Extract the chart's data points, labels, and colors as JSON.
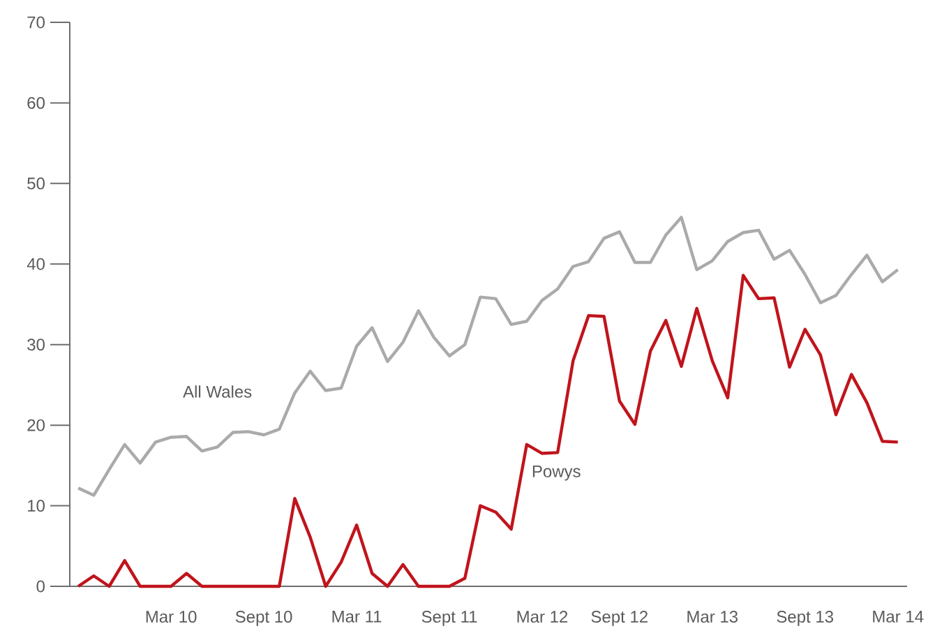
{
  "chart_data": {
    "type": "line",
    "categories": [
      null,
      null,
      null,
      null,
      null,
      null,
      "Mar 10",
      null,
      null,
      null,
      null,
      null,
      "Sept 10",
      null,
      null,
      null,
      null,
      null,
      "Mar 11",
      null,
      null,
      null,
      null,
      null,
      "Sept 11",
      null,
      null,
      null,
      null,
      null,
      "Mar 12",
      null,
      null,
      null,
      null,
      "Sept 12",
      null,
      null,
      null,
      null,
      null,
      "Mar 13",
      null,
      null,
      null,
      null,
      null,
      "Sept 13",
      null,
      null,
      null,
      null,
      null,
      "Mar 14"
    ],
    "series": [
      {
        "name": "All Wales",
        "color": "#aaaaaa",
        "values": [
          12.2,
          11.3,
          14.5,
          17.6,
          15.3,
          17.9,
          18.5,
          18.6,
          16.8,
          17.3,
          19.1,
          19.2,
          18.8,
          19.5,
          24.0,
          26.7,
          24.3,
          24.6,
          29.8,
          32.1,
          27.9,
          30.3,
          34.2,
          30.9,
          28.6,
          30.0,
          35.9,
          35.7,
          32.5,
          32.9,
          35.5,
          36.9,
          39.7,
          40.3,
          43.2,
          44.0,
          40.2,
          40.2,
          43.6,
          45.8,
          39.3,
          40.4,
          42.8,
          43.9,
          44.2,
          40.6,
          41.7,
          38.7,
          35.2,
          36.1,
          38.7,
          41.1,
          37.8,
          39.3
        ]
      },
      {
        "name": "Powys",
        "color": "#c0141c",
        "values": [
          0,
          1.3,
          0,
          3.2,
          0,
          0,
          0,
          1.6,
          0,
          0,
          0,
          0,
          0,
          0,
          10.9,
          6.1,
          0,
          3.0,
          7.6,
          1.6,
          0,
          2.7,
          0,
          0,
          0,
          1.0,
          10.0,
          9.2,
          7.1,
          17.6,
          16.5,
          16.6,
          28.0,
          33.6,
          33.5,
          23.0,
          20.1,
          29.2,
          33.0,
          27.3,
          34.5,
          28.0,
          23.4,
          38.6,
          35.7,
          35.8,
          27.2,
          31.9,
          28.7,
          21.3,
          26.3,
          22.8,
          18.0,
          17.9
        ]
      }
    ],
    "ylim": [
      0,
      70
    ],
    "yticks": [
      0,
      10,
      20,
      30,
      40,
      50,
      60,
      70
    ],
    "grid": false,
    "legend": false,
    "marker": "none",
    "line_style": "solid"
  }
}
